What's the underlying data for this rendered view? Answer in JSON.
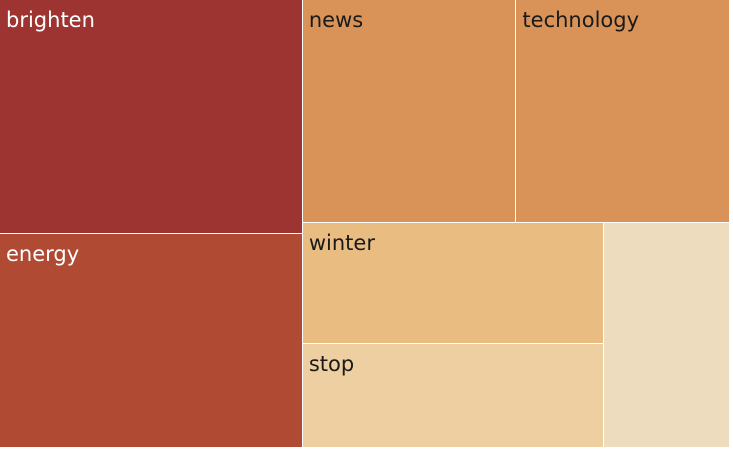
{
  "chart_data": {
    "type": "treemap",
    "title": "",
    "items": [
      {
        "label": "brighten",
        "value": 70,
        "color": "#9e3431",
        "text_color": "#ffffff"
      },
      {
        "label": "energy",
        "value": 64,
        "color": "#b04a33",
        "text_color": "#ffffff"
      },
      {
        "label": "news",
        "value": 47,
        "color": "#d99358",
        "text_color": "#1a1a1a"
      },
      {
        "label": "technology",
        "value": 47,
        "color": "#d99358",
        "text_color": "#1a1a1a"
      },
      {
        "label": "winter",
        "value": 36,
        "color": "#e9bc81",
        "text_color": "#1a1a1a"
      },
      {
        "label": "stop",
        "value": 31,
        "color": "#eecfa1",
        "text_color": "#1a1a1a"
      },
      {
        "label": "",
        "value": 28,
        "color": "#eedcbe",
        "text_color": "#1a1a1a"
      }
    ]
  }
}
